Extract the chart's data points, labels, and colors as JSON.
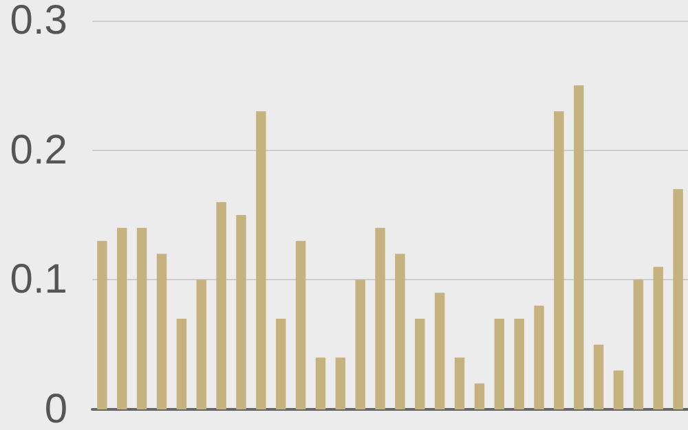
{
  "chart_data": {
    "type": "bar",
    "categories": [
      null,
      null,
      null,
      null,
      null,
      null,
      null,
      null,
      null,
      null,
      null,
      null,
      null,
      null,
      null,
      null,
      null,
      null,
      null,
      null,
      null,
      null,
      null,
      null,
      null,
      null,
      null,
      null,
      null,
      null
    ],
    "values": [
      0.13,
      0.14,
      0.14,
      0.12,
      0.07,
      0.1,
      0.16,
      0.15,
      0.23,
      0.07,
      0.13,
      0.04,
      0.04,
      0.1,
      0.14,
      0.12,
      0.07,
      0.09,
      0.04,
      0.02,
      0.07,
      0.07,
      0.08,
      0.23,
      0.25,
      0.05,
      0.03,
      0.1,
      0.11,
      0.17
    ],
    "color": "#c5b27e",
    "ylim": [
      0,
      0.3
    ],
    "yticks": [
      0,
      0.1,
      0.2,
      0.3
    ],
    "grid": "y",
    "tick_labels": "y"
  }
}
